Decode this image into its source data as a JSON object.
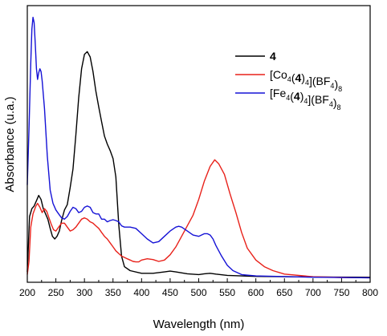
{
  "chart_data": {
    "type": "line",
    "xlabel": "Wavelength (nm)",
    "ylabel": "Absorbance (u.a.)",
    "xlim": [
      200,
      800
    ],
    "ylim": [
      0,
      1
    ],
    "x_ticks": [
      200,
      250,
      300,
      350,
      400,
      450,
      500,
      550,
      600,
      650,
      700,
      750,
      800
    ],
    "y_ticks_shown": false,
    "grid": false,
    "legend_position": "top-right",
    "series": [
      {
        "name": "4",
        "legend": {
          "text": "4",
          "bold": true
        },
        "color": "#000000",
        "points": [
          [
            200,
            0.03
          ],
          [
            204,
            0.24
          ],
          [
            208,
            0.27
          ],
          [
            212,
            0.28
          ],
          [
            216,
            0.3
          ],
          [
            220,
            0.32
          ],
          [
            224,
            0.305
          ],
          [
            228,
            0.27
          ],
          [
            232,
            0.25
          ],
          [
            236,
            0.23
          ],
          [
            240,
            0.195
          ],
          [
            244,
            0.165
          ],
          [
            248,
            0.155
          ],
          [
            252,
            0.165
          ],
          [
            256,
            0.185
          ],
          [
            260,
            0.225
          ],
          [
            265,
            0.265
          ],
          [
            270,
            0.285
          ],
          [
            275,
            0.35
          ],
          [
            280,
            0.42
          ],
          [
            285,
            0.55
          ],
          [
            290,
            0.69
          ],
          [
            295,
            0.8
          ],
          [
            300,
            0.855
          ],
          [
            305,
            0.865
          ],
          [
            310,
            0.845
          ],
          [
            315,
            0.79
          ],
          [
            320,
            0.715
          ],
          [
            325,
            0.655
          ],
          [
            330,
            0.6
          ],
          [
            335,
            0.545
          ],
          [
            340,
            0.515
          ],
          [
            345,
            0.49
          ],
          [
            350,
            0.46
          ],
          [
            355,
            0.39
          ],
          [
            360,
            0.21
          ],
          [
            365,
            0.09
          ],
          [
            370,
            0.05
          ],
          [
            380,
            0.035
          ],
          [
            400,
            0.025
          ],
          [
            420,
            0.025
          ],
          [
            440,
            0.03
          ],
          [
            450,
            0.033
          ],
          [
            460,
            0.03
          ],
          [
            480,
            0.023
          ],
          [
            500,
            0.02
          ],
          [
            510,
            0.023
          ],
          [
            520,
            0.025
          ],
          [
            530,
            0.022
          ],
          [
            550,
            0.017
          ],
          [
            600,
            0.013
          ],
          [
            700,
            0.011
          ],
          [
            800,
            0.01
          ]
        ]
      },
      {
        "name": "[Co4(4)4](BF4)8",
        "legend": {
          "parts": [
            [
              "[Co",
              ""
            ],
            [
              "4",
              "sub"
            ],
            [
              "(",
              ""
            ],
            [
              "4",
              "bold"
            ],
            [
              ")",
              ""
            ],
            [
              "4",
              "sub"
            ],
            [
              "](BF",
              ""
            ],
            [
              "4",
              "sub"
            ],
            [
              ")",
              ""
            ],
            [
              "8",
              "sub"
            ]
          ]
        },
        "color": "#e8211a",
        "points": [
          [
            200,
            0.02
          ],
          [
            203,
            0.07
          ],
          [
            206,
            0.2
          ],
          [
            210,
            0.25
          ],
          [
            215,
            0.28
          ],
          [
            218,
            0.29
          ],
          [
            222,
            0.275
          ],
          [
            226,
            0.255
          ],
          [
            230,
            0.27
          ],
          [
            234,
            0.26
          ],
          [
            238,
            0.235
          ],
          [
            242,
            0.21
          ],
          [
            246,
            0.19
          ],
          [
            250,
            0.185
          ],
          [
            255,
            0.2
          ],
          [
            260,
            0.215
          ],
          [
            265,
            0.215
          ],
          [
            270,
            0.2
          ],
          [
            275,
            0.185
          ],
          [
            280,
            0.19
          ],
          [
            285,
            0.2
          ],
          [
            290,
            0.215
          ],
          [
            295,
            0.23
          ],
          [
            300,
            0.235
          ],
          [
            305,
            0.23
          ],
          [
            310,
            0.22
          ],
          [
            315,
            0.215
          ],
          [
            320,
            0.205
          ],
          [
            325,
            0.195
          ],
          [
            330,
            0.18
          ],
          [
            335,
            0.165
          ],
          [
            340,
            0.155
          ],
          [
            345,
            0.14
          ],
          [
            350,
            0.125
          ],
          [
            355,
            0.11
          ],
          [
            360,
            0.1
          ],
          [
            365,
            0.09
          ],
          [
            370,
            0.085
          ],
          [
            375,
            0.08
          ],
          [
            380,
            0.075
          ],
          [
            385,
            0.07
          ],
          [
            390,
            0.068
          ],
          [
            395,
            0.068
          ],
          [
            400,
            0.075
          ],
          [
            410,
            0.08
          ],
          [
            420,
            0.077
          ],
          [
            430,
            0.07
          ],
          [
            440,
            0.075
          ],
          [
            450,
            0.095
          ],
          [
            460,
            0.125
          ],
          [
            470,
            0.165
          ],
          [
            480,
            0.205
          ],
          [
            490,
            0.245
          ],
          [
            500,
            0.305
          ],
          [
            510,
            0.375
          ],
          [
            520,
            0.43
          ],
          [
            528,
            0.455
          ],
          [
            535,
            0.44
          ],
          [
            545,
            0.4
          ],
          [
            555,
            0.325
          ],
          [
            565,
            0.255
          ],
          [
            575,
            0.18
          ],
          [
            585,
            0.12
          ],
          [
            600,
            0.075
          ],
          [
            615,
            0.05
          ],
          [
            630,
            0.035
          ],
          [
            650,
            0.022
          ],
          [
            700,
            0.012
          ],
          [
            750,
            0.009
          ],
          [
            800,
            0.008
          ]
        ]
      },
      {
        "name": "[Fe4(4)4](BF4)8",
        "legend": {
          "parts": [
            [
              "[Fe",
              ""
            ],
            [
              "4",
              "sub"
            ],
            [
              "(",
              ""
            ],
            [
              "4",
              "bold"
            ],
            [
              ")",
              ""
            ],
            [
              "4",
              "sub"
            ],
            [
              "](BF",
              ""
            ],
            [
              "4",
              "sub"
            ],
            [
              ")",
              ""
            ],
            [
              "8",
              "sub"
            ]
          ]
        },
        "color": "#1512d6",
        "points": [
          [
            200,
            0.36
          ],
          [
            203,
            0.57
          ],
          [
            206,
            0.82
          ],
          [
            208,
            0.95
          ],
          [
            210,
            0.995
          ],
          [
            212,
            0.975
          ],
          [
            214,
            0.89
          ],
          [
            216,
            0.8
          ],
          [
            218,
            0.76
          ],
          [
            220,
            0.785
          ],
          [
            222,
            0.8
          ],
          [
            224,
            0.79
          ],
          [
            226,
            0.755
          ],
          [
            230,
            0.65
          ],
          [
            235,
            0.47
          ],
          [
            240,
            0.34
          ],
          [
            245,
            0.29
          ],
          [
            250,
            0.265
          ],
          [
            255,
            0.25
          ],
          [
            260,
            0.235
          ],
          [
            265,
            0.23
          ],
          [
            270,
            0.24
          ],
          [
            275,
            0.26
          ],
          [
            280,
            0.275
          ],
          [
            285,
            0.27
          ],
          [
            290,
            0.255
          ],
          [
            295,
            0.26
          ],
          [
            300,
            0.275
          ],
          [
            305,
            0.28
          ],
          [
            310,
            0.275
          ],
          [
            315,
            0.255
          ],
          [
            320,
            0.25
          ],
          [
            325,
            0.25
          ],
          [
            330,
            0.23
          ],
          [
            335,
            0.23
          ],
          [
            340,
            0.22
          ],
          [
            345,
            0.225
          ],
          [
            350,
            0.228
          ],
          [
            355,
            0.225
          ],
          [
            360,
            0.22
          ],
          [
            365,
            0.205
          ],
          [
            370,
            0.2
          ],
          [
            380,
            0.2
          ],
          [
            390,
            0.195
          ],
          [
            400,
            0.175
          ],
          [
            410,
            0.155
          ],
          [
            420,
            0.14
          ],
          [
            430,
            0.145
          ],
          [
            440,
            0.165
          ],
          [
            450,
            0.185
          ],
          [
            460,
            0.2
          ],
          [
            465,
            0.203
          ],
          [
            470,
            0.2
          ],
          [
            480,
            0.185
          ],
          [
            490,
            0.17
          ],
          [
            500,
            0.165
          ],
          [
            510,
            0.175
          ],
          [
            515,
            0.175
          ],
          [
            520,
            0.17
          ],
          [
            525,
            0.155
          ],
          [
            530,
            0.13
          ],
          [
            540,
            0.09
          ],
          [
            550,
            0.055
          ],
          [
            560,
            0.035
          ],
          [
            575,
            0.02
          ],
          [
            600,
            0.015
          ],
          [
            700,
            0.01
          ],
          [
            800,
            0.008
          ]
        ]
      }
    ]
  }
}
